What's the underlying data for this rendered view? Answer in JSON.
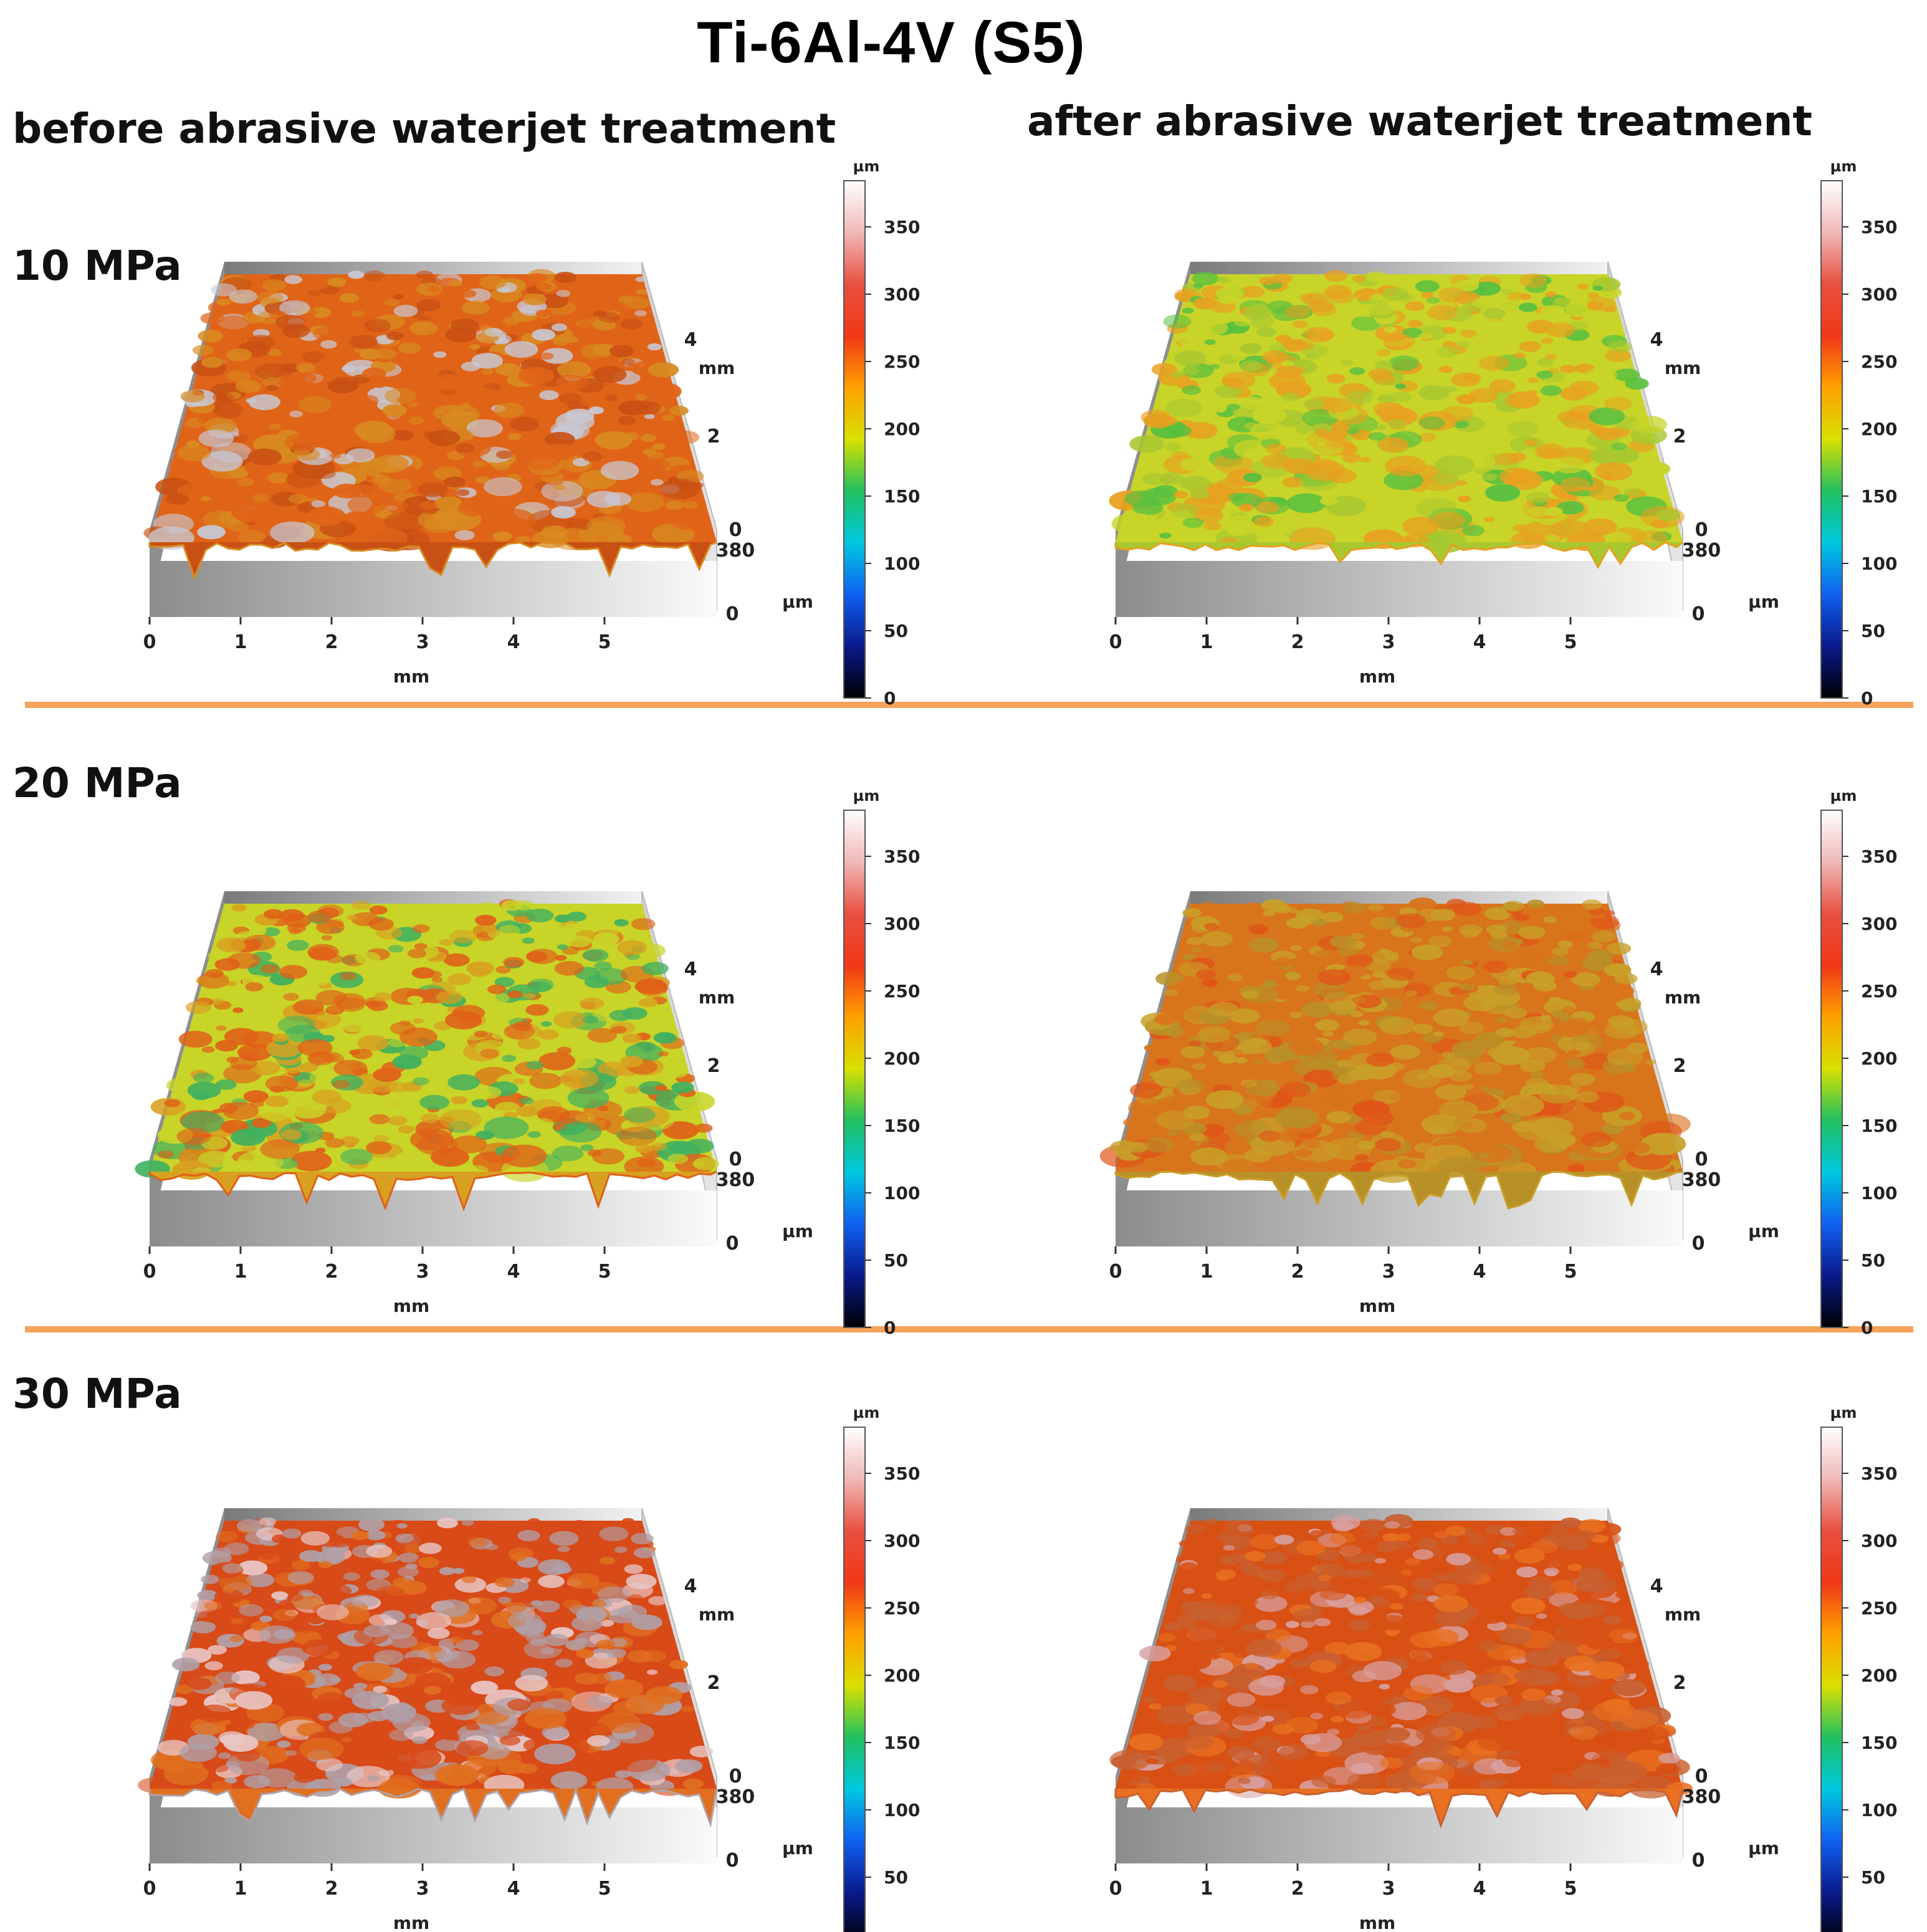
{
  "figure": {
    "title": "Ti-6Al-4V (S5)",
    "columns": [
      "before abrasive waterjet treatment",
      "after abrasive waterjet treatment"
    ],
    "rows": [
      "10 MPa",
      "20 MPa",
      "30 MPa"
    ]
  },
  "axes": {
    "x_ticks": [
      "0",
      "1",
      "2",
      "3",
      "4",
      "5"
    ],
    "x_unit": "mm",
    "y_ticks": [
      "0",
      "2",
      "4"
    ],
    "y_unit": "mm",
    "z_ticks": [
      "0",
      "380"
    ],
    "z_unit": "µm"
  },
  "colorbar": {
    "unit": "µm",
    "ticks": [
      "0",
      "50",
      "100",
      "150",
      "200",
      "250",
      "300",
      "350"
    ],
    "colors": [
      "#000000",
      "#0a1a8c",
      "#1060f0",
      "#00c8e0",
      "#20c060",
      "#d8e000",
      "#ffa000",
      "#f03818",
      "#e85040",
      "#f0b8b8",
      "#ffffff"
    ]
  },
  "panels": [
    {
      "row": 0,
      "col": 0,
      "surface": {
        "base": "#e06418",
        "alt": "#d88a20",
        "peak": "#c8c8d4",
        "mix": "#c85014"
      }
    },
    {
      "row": 0,
      "col": 1,
      "surface": {
        "base": "#c8d428",
        "alt": "#e8a020",
        "peak": "#58c040",
        "mix": "#a8c830"
      }
    },
    {
      "row": 1,
      "col": 0,
      "surface": {
        "base": "#c8d428",
        "alt": "#e06018",
        "peak": "#40b060",
        "mix": "#d8a020"
      }
    },
    {
      "row": 1,
      "col": 1,
      "surface": {
        "base": "#d8741c",
        "alt": "#c8a028",
        "peak": "#e05418",
        "mix": "#b89028"
      }
    },
    {
      "row": 2,
      "col": 0,
      "surface": {
        "base": "#d84a18",
        "alt": "#b0a0a8",
        "peak": "#e8c8c8",
        "mix": "#e07020"
      }
    },
    {
      "row": 2,
      "col": 1,
      "surface": {
        "base": "#d85014",
        "alt": "#c86030",
        "peak": "#d8a0a0",
        "mix": "#e87020"
      }
    }
  ]
}
